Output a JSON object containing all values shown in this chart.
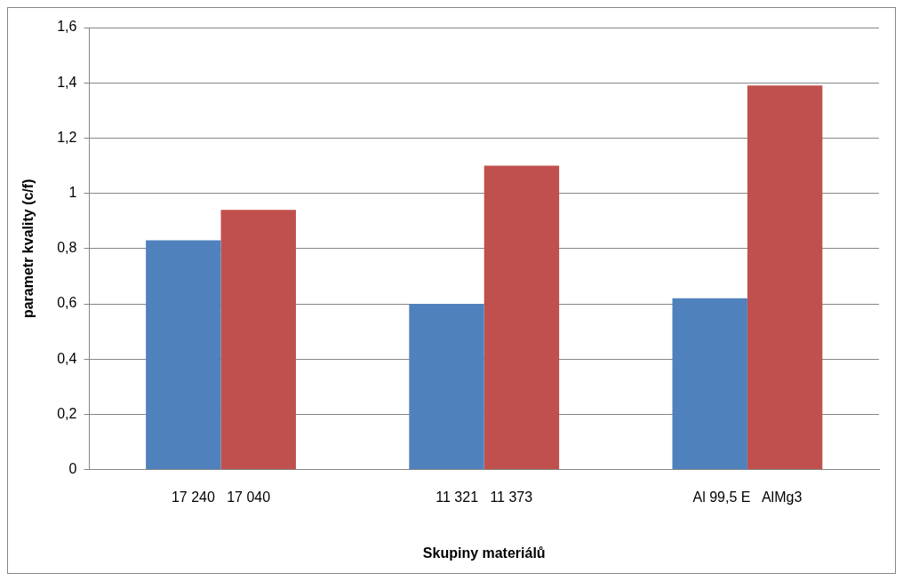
{
  "chart_data": {
    "type": "bar",
    "xlabel": "Skupiny materiálů",
    "ylabel": "parametr kvality (c/f)",
    "categories": [
      "17 240   17 040",
      "11 321   11 373",
      "Al 99,5 E   AlMg3"
    ],
    "series": [
      {
        "color": "#4f81bd",
        "values": [
          0.83,
          0.6,
          0.62
        ]
      },
      {
        "color": "#c0504d",
        "values": [
          0.94,
          1.1,
          1.39
        ]
      }
    ],
    "ylim": [
      0,
      1.6
    ],
    "yticks": [
      0,
      {
        "value": 0.2,
        "label": "0,2"
      },
      {
        "value": 0.4,
        "label": "0,4"
      },
      {
        "value": 0.6,
        "label": "0,6"
      },
      {
        "value": 0.8,
        "label": "0,8"
      },
      1,
      {
        "value": 1.2,
        "label": "1,2"
      },
      {
        "value": 1.4,
        "label": "1,4"
      },
      {
        "value": 1.6,
        "label": "1,6"
      }
    ],
    "grid": "y",
    "legend": false
  }
}
